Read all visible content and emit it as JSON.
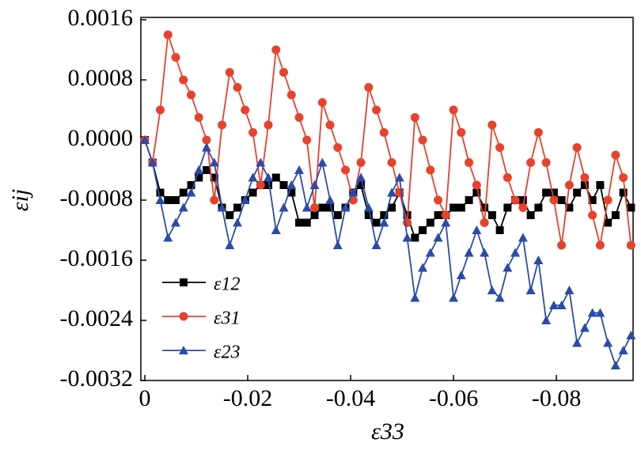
{
  "chart_data": {
    "type": "line",
    "xlabel": "ε33",
    "ylabel": "εij",
    "xlim": [
      0,
      -0.0949
    ],
    "xticks": [
      0,
      -0.02,
      -0.04,
      -0.06,
      -0.08
    ],
    "ylim": [
      -0.0032,
      0.0016
    ],
    "yticks": [
      -0.0032,
      -0.0024,
      -0.0016,
      -0.0008,
      {
        "value": 0,
        "label": "0.0000"
      },
      0.0008,
      0.0016
    ],
    "x": [
      0,
      -0.0015,
      -0.003,
      -0.0045,
      -0.006,
      -0.0075,
      -0.009,
      -0.0105,
      -0.012,
      -0.0135,
      -0.015,
      -0.0165,
      -0.018,
      -0.0195,
      -0.021,
      -0.0225,
      -0.024,
      -0.0255,
      -0.027,
      -0.0285,
      -0.03,
      -0.0315,
      -0.033,
      -0.0345,
      -0.036,
      -0.0375,
      -0.039,
      -0.0405,
      -0.042,
      -0.0435,
      -0.045,
      -0.0465,
      -0.048,
      -0.0495,
      -0.051,
      -0.0525,
      -0.054,
      -0.0555,
      -0.057,
      -0.0585,
      -0.06,
      -0.0615,
      -0.063,
      -0.0645,
      -0.066,
      -0.0675,
      -0.069,
      -0.0705,
      -0.072,
      -0.0735,
      -0.075,
      -0.0765,
      -0.078,
      -0.0795,
      -0.081,
      -0.0825,
      -0.084,
      -0.0855,
      -0.087,
      -0.0885,
      -0.09,
      -0.0915,
      -0.093,
      -0.0945
    ],
    "legend": "lower left",
    "series": [
      {
        "name": "ε12",
        "color": "#000000",
        "marker": "square",
        "values": [
          0,
          -0.0003,
          -0.0007,
          -0.0008,
          -0.0008,
          -0.0007,
          -0.0006,
          -0.0005,
          -0.0004,
          -0.0005,
          -0.0009,
          -0.001,
          -0.0009,
          -0.0008,
          -0.0007,
          -0.0006,
          -0.0006,
          -0.0005,
          -0.0006,
          -0.0007,
          -0.0011,
          -0.0011,
          -0.001,
          -0.0009,
          -0.0009,
          -0.001,
          -0.0009,
          -0.0007,
          -0.0006,
          -0.001,
          -0.0011,
          -0.001,
          -0.0009,
          -0.0007,
          -0.001,
          -0.0013,
          -0.0012,
          -0.0011,
          -0.001,
          -0.001,
          -0.0009,
          -0.0009,
          -0.0008,
          -0.0007,
          -0.0009,
          -0.001,
          -0.0012,
          -0.0009,
          -0.0008,
          -0.0008,
          -0.001,
          -0.0009,
          -0.0007,
          -0.0007,
          -0.0008,
          -0.0009,
          -0.0007,
          -0.0006,
          -0.0008,
          -0.0006,
          -0.0011,
          -0.001,
          -0.0007,
          -0.0009
        ]
      },
      {
        "name": "ε31",
        "color": "#e8412c",
        "marker": "circle",
        "values": [
          0,
          -0.0003,
          0.0004,
          0.0014,
          0.0011,
          0.0008,
          0.0006,
          0.0003,
          0,
          -0.0008,
          0.0002,
          0.0009,
          0.0007,
          0.0004,
          0.0001,
          -0.0006,
          0.0002,
          0.0012,
          0.0009,
          0.0006,
          0.0003,
          0,
          -0.0009,
          0.0005,
          0.0002,
          -0.0001,
          -0.0004,
          -0.0008,
          -0.0003,
          0.0007,
          0.0004,
          0.0001,
          -0.0003,
          -0.0007,
          -0.0011,
          0.0003,
          0,
          -0.0004,
          -0.0008,
          -0.001,
          0.0004,
          0.0001,
          -0.0003,
          -0.0006,
          -0.0011,
          0.0002,
          -0.0001,
          -0.0005,
          -0.0008,
          -0.0009,
          -0.0003,
          0.0001,
          -0.0003,
          -0.0008,
          -0.0014,
          -0.0006,
          -0.0001,
          -0.0005,
          -0.001,
          -0.0014,
          -0.0008,
          -0.0002,
          -0.0005,
          -0.0014
        ]
      },
      {
        "name": "ε23",
        "color": "#2b4ba8",
        "marker": "triangle",
        "values": [
          0,
          -0.0003,
          -0.0008,
          -0.0013,
          -0.0011,
          -0.0009,
          -0.0007,
          -0.0004,
          -0.0001,
          -0.0003,
          -0.0009,
          -0.0014,
          -0.0011,
          -0.0008,
          -0.0005,
          -0.0003,
          -0.0005,
          -0.0012,
          -0.0009,
          -0.0006,
          -0.0004,
          -0.0009,
          -0.0006,
          -0.0003,
          -0.0008,
          -0.0014,
          -0.0009,
          -0.0007,
          -0.0005,
          -0.0009,
          -0.0014,
          -0.0011,
          -0.0007,
          -0.0005,
          -0.0013,
          -0.0021,
          -0.0017,
          -0.0015,
          -0.0013,
          -0.0011,
          -0.0021,
          -0.0018,
          -0.0015,
          -0.0012,
          -0.0015,
          -0.002,
          -0.0021,
          -0.0017,
          -0.0015,
          -0.0013,
          -0.002,
          -0.0016,
          -0.0024,
          -0.0022,
          -0.0022,
          -0.002,
          -0.0027,
          -0.0025,
          -0.0023,
          -0.0023,
          -0.0027,
          -0.003,
          -0.0028,
          -0.0026
        ]
      }
    ]
  }
}
